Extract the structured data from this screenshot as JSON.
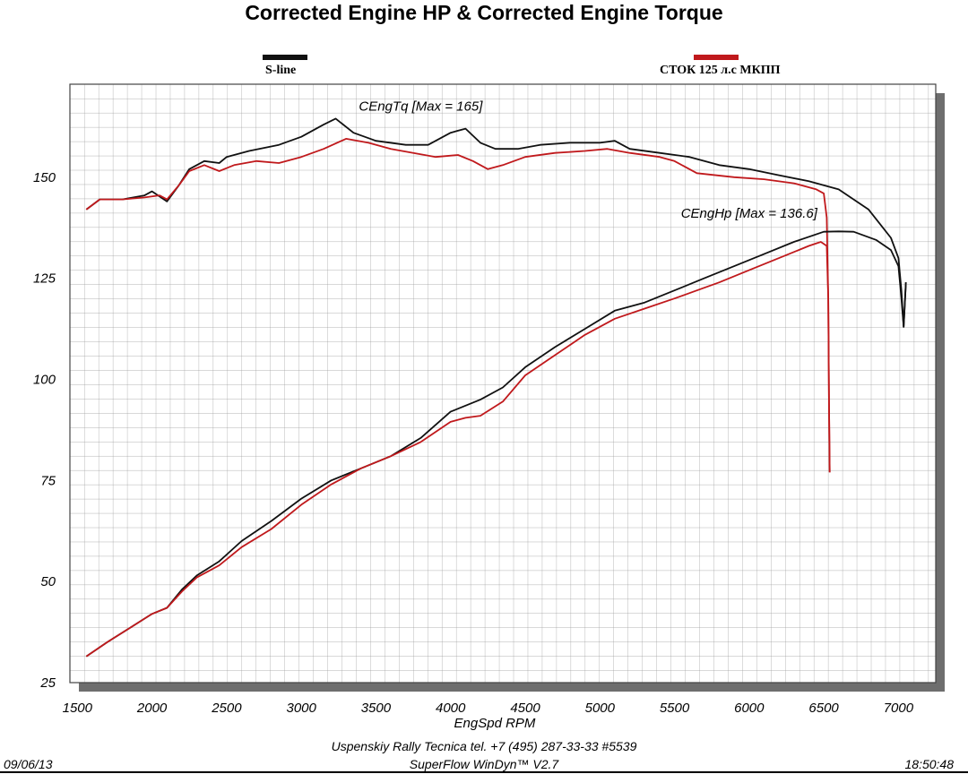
{
  "chart_data": {
    "type": "line",
    "title": "Corrected Engine HP & Corrected Engine Torque",
    "xlabel": "EngSpd  RPM",
    "ylabel": "",
    "xlim": [
      1450,
      7250
    ],
    "ylim": [
      25,
      173
    ],
    "x_ticks": [
      1500,
      2000,
      2500,
      3000,
      3500,
      4000,
      4500,
      5000,
      5500,
      6000,
      6500,
      7000
    ],
    "y_ticks": [
      25,
      50,
      75,
      100,
      125,
      150
    ],
    "grid": true,
    "legend": [
      {
        "name": "S-line",
        "color": "#111111",
        "position": "top-left"
      },
      {
        "name": "СТОК 125 л.с МКПП",
        "color": "#c0191c",
        "position": "top-right"
      }
    ],
    "series": [
      {
        "name": "S-line",
        "metric": "CEngTq",
        "color": "#111111",
        "points": [
          [
            1560,
            142
          ],
          [
            1650,
            144.5
          ],
          [
            1800,
            144.5
          ],
          [
            1950,
            145.5
          ],
          [
            2000,
            146.5
          ],
          [
            2100,
            144
          ],
          [
            2180,
            148
          ],
          [
            2250,
            152
          ],
          [
            2350,
            154
          ],
          [
            2450,
            153.5
          ],
          [
            2500,
            155
          ],
          [
            2650,
            156.5
          ],
          [
            2850,
            158
          ],
          [
            3000,
            160
          ],
          [
            3150,
            163
          ],
          [
            3230,
            164.5
          ],
          [
            3350,
            161
          ],
          [
            3500,
            159
          ],
          [
            3700,
            158
          ],
          [
            3850,
            158
          ],
          [
            4000,
            161
          ],
          [
            4100,
            162
          ],
          [
            4200,
            158.5
          ],
          [
            4300,
            157
          ],
          [
            4450,
            157
          ],
          [
            4600,
            158
          ],
          [
            4800,
            158.5
          ],
          [
            5000,
            158.5
          ],
          [
            5100,
            159
          ],
          [
            5200,
            157
          ],
          [
            5400,
            156
          ],
          [
            5600,
            155
          ],
          [
            5800,
            153
          ],
          [
            6000,
            152
          ],
          [
            6200,
            150.5
          ],
          [
            6400,
            149
          ],
          [
            6600,
            147
          ],
          [
            6800,
            142
          ],
          [
            6950,
            135
          ],
          [
            7000,
            130
          ],
          [
            7020,
            122
          ],
          [
            7035,
            113
          ],
          [
            7050,
            124
          ]
        ]
      },
      {
        "name": "СТОК 125 л.с МКПП",
        "metric": "CEngTq",
        "color": "#c0191c",
        "points": [
          [
            1560,
            142
          ],
          [
            1650,
            144.5
          ],
          [
            1800,
            144.5
          ],
          [
            1950,
            145
          ],
          [
            2050,
            145.5
          ],
          [
            2100,
            144.5
          ],
          [
            2180,
            148
          ],
          [
            2250,
            151.5
          ],
          [
            2350,
            153
          ],
          [
            2450,
            151.5
          ],
          [
            2550,
            153
          ],
          [
            2700,
            154
          ],
          [
            2850,
            153.5
          ],
          [
            3000,
            155
          ],
          [
            3150,
            157
          ],
          [
            3300,
            159.5
          ],
          [
            3450,
            158.5
          ],
          [
            3600,
            157
          ],
          [
            3750,
            156
          ],
          [
            3900,
            155
          ],
          [
            4050,
            155.5
          ],
          [
            4150,
            154
          ],
          [
            4250,
            152
          ],
          [
            4350,
            153
          ],
          [
            4500,
            155
          ],
          [
            4700,
            156
          ],
          [
            4900,
            156.5
          ],
          [
            5050,
            157
          ],
          [
            5200,
            156
          ],
          [
            5400,
            155
          ],
          [
            5500,
            154
          ],
          [
            5650,
            151
          ],
          [
            5900,
            150
          ],
          [
            6100,
            149.5
          ],
          [
            6300,
            148.5
          ],
          [
            6450,
            147
          ],
          [
            6500,
            146
          ],
          [
            6520,
            140
          ],
          [
            6530,
            120
          ],
          [
            6535,
            95
          ],
          [
            6540,
            77
          ]
        ]
      },
      {
        "name": "S-line",
        "metric": "CEngHp",
        "color": "#111111",
        "points": [
          [
            1560,
            31.5
          ],
          [
            1700,
            35
          ],
          [
            1850,
            38.5
          ],
          [
            2000,
            42
          ],
          [
            2100,
            43.5
          ],
          [
            2200,
            48
          ],
          [
            2300,
            51.5
          ],
          [
            2450,
            55
          ],
          [
            2600,
            60
          ],
          [
            2800,
            65
          ],
          [
            3000,
            70.5
          ],
          [
            3200,
            75
          ],
          [
            3400,
            78
          ],
          [
            3600,
            81
          ],
          [
            3800,
            85.5
          ],
          [
            4000,
            92
          ],
          [
            4100,
            93.5
          ],
          [
            4200,
            95
          ],
          [
            4350,
            98
          ],
          [
            4500,
            103
          ],
          [
            4700,
            108
          ],
          [
            4900,
            112.5
          ],
          [
            5100,
            117
          ],
          [
            5300,
            119
          ],
          [
            5500,
            122
          ],
          [
            5700,
            125
          ],
          [
            5900,
            128
          ],
          [
            6100,
            131
          ],
          [
            6300,
            134
          ],
          [
            6500,
            136.5
          ],
          [
            6600,
            136.6
          ],
          [
            6700,
            136.5
          ],
          [
            6850,
            134.5
          ],
          [
            6950,
            132
          ],
          [
            7000,
            128
          ],
          [
            7020,
            120
          ],
          [
            7035,
            113
          ],
          [
            7050,
            124
          ]
        ]
      },
      {
        "name": "СТОК 125 л.с МКПП",
        "metric": "CEngHp",
        "color": "#c0191c",
        "points": [
          [
            1560,
            31.5
          ],
          [
            1700,
            35
          ],
          [
            1850,
            38.5
          ],
          [
            2000,
            42
          ],
          [
            2100,
            43.5
          ],
          [
            2200,
            47.5
          ],
          [
            2300,
            51
          ],
          [
            2450,
            54
          ],
          [
            2600,
            58.5
          ],
          [
            2800,
            63
          ],
          [
            3000,
            69
          ],
          [
            3200,
            74
          ],
          [
            3400,
            78
          ],
          [
            3600,
            81
          ],
          [
            3800,
            84.5
          ],
          [
            4000,
            89.5
          ],
          [
            4100,
            90.5
          ],
          [
            4200,
            91
          ],
          [
            4350,
            94.5
          ],
          [
            4500,
            101
          ],
          [
            4700,
            106
          ],
          [
            4900,
            111
          ],
          [
            5100,
            115
          ],
          [
            5300,
            117.5
          ],
          [
            5500,
            120
          ],
          [
            5650,
            122
          ],
          [
            5800,
            124
          ],
          [
            6000,
            127
          ],
          [
            6200,
            130
          ],
          [
            6400,
            133
          ],
          [
            6480,
            134
          ],
          [
            6520,
            133
          ],
          [
            6530,
            120
          ],
          [
            6535,
            95
          ],
          [
            6540,
            77
          ]
        ]
      }
    ],
    "annotations": [
      {
        "text": "CEngTq [Max = 165]",
        "x": 3800,
        "y": 166.5
      },
      {
        "text": "CEngHp [Max = 136.6]",
        "x": 6000,
        "y": 140
      }
    ]
  },
  "footer": {
    "company": "Uspenskiy Rally Tecnica   tel. +7 (495) 287-33-33 #5539",
    "software": "SuperFlow WinDyn™ V2.7",
    "date": "09/06/13",
    "time": "18:50:48"
  }
}
